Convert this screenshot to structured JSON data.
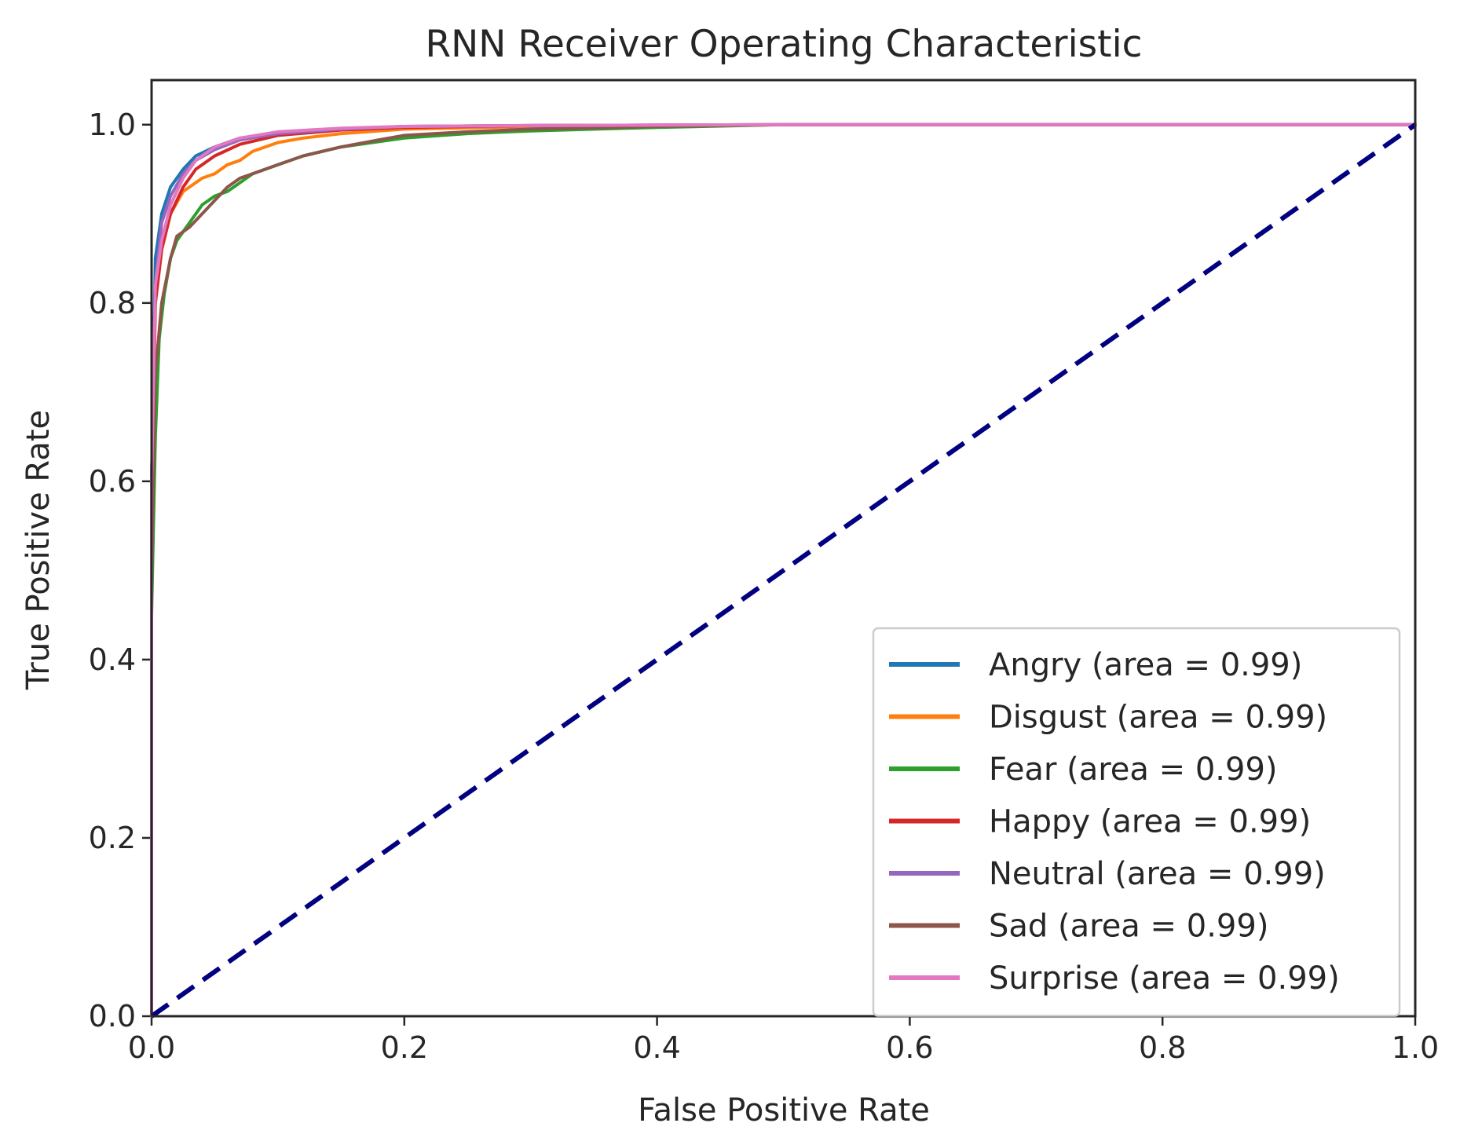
{
  "chart_data": {
    "type": "line",
    "title": "RNN Receiver Operating Characteristic",
    "xlabel": "False Positive Rate",
    "ylabel": "True Positive Rate",
    "xlim": [
      0.0,
      1.0
    ],
    "ylim": [
      0.0,
      1.05
    ],
    "x_ticks": [
      "0.0",
      "0.2",
      "0.4",
      "0.6",
      "0.8",
      "1.0"
    ],
    "y_ticks": [
      "0.0",
      "0.2",
      "0.4",
      "0.6",
      "0.8",
      "1.0"
    ],
    "grid": false,
    "legend_position": "lower-right",
    "diagonal": {
      "color": "#000080",
      "style": "dashed",
      "x": [
        0.0,
        1.0
      ],
      "y": [
        0.0,
        1.0
      ]
    },
    "series": [
      {
        "name": "Angry",
        "label": "Angry (area = 0.99)",
        "auc": 0.99,
        "color": "#1f77b4",
        "x": [
          0.0,
          0.0,
          0.003,
          0.008,
          0.015,
          0.025,
          0.035,
          0.05,
          0.07,
          0.1,
          0.15,
          0.2,
          0.3,
          0.5,
          0.7,
          1.0
        ],
        "y": [
          0.0,
          0.6,
          0.85,
          0.9,
          0.93,
          0.95,
          0.965,
          0.975,
          0.985,
          0.99,
          0.995,
          0.998,
          0.999,
          1.0,
          1.0,
          1.0
        ]
      },
      {
        "name": "Disgust",
        "label": "Disgust (area = 0.99)",
        "auc": 0.99,
        "color": "#ff7f0e",
        "x": [
          0.0,
          0.0,
          0.003,
          0.008,
          0.015,
          0.025,
          0.04,
          0.05,
          0.06,
          0.07,
          0.08,
          0.1,
          0.12,
          0.15,
          0.2,
          0.3,
          0.5,
          0.7,
          1.0
        ],
        "y": [
          0.0,
          0.55,
          0.8,
          0.86,
          0.9,
          0.925,
          0.94,
          0.945,
          0.955,
          0.96,
          0.97,
          0.98,
          0.985,
          0.99,
          0.995,
          0.998,
          1.0,
          1.0,
          1.0
        ]
      },
      {
        "name": "Fear",
        "label": "Fear (area = 0.99)",
        "auc": 0.99,
        "color": "#2ca02c",
        "x": [
          0.0,
          0.0,
          0.003,
          0.006,
          0.01,
          0.015,
          0.02,
          0.03,
          0.04,
          0.05,
          0.06,
          0.07,
          0.08,
          0.1,
          0.12,
          0.15,
          0.2,
          0.25,
          0.3,
          0.4,
          0.5,
          0.7,
          1.0
        ],
        "y": [
          0.0,
          0.45,
          0.65,
          0.76,
          0.81,
          0.85,
          0.87,
          0.89,
          0.91,
          0.92,
          0.925,
          0.935,
          0.945,
          0.955,
          0.965,
          0.975,
          0.985,
          0.99,
          0.993,
          0.997,
          1.0,
          1.0,
          1.0
        ]
      },
      {
        "name": "Happy",
        "label": "Happy (area = 0.99)",
        "auc": 0.99,
        "color": "#d62728",
        "x": [
          0.0,
          0.0,
          0.003,
          0.008,
          0.015,
          0.025,
          0.035,
          0.05,
          0.07,
          0.1,
          0.15,
          0.2,
          0.3,
          0.5,
          0.7,
          1.0
        ],
        "y": [
          0.0,
          0.6,
          0.8,
          0.86,
          0.9,
          0.93,
          0.95,
          0.965,
          0.978,
          0.988,
          0.994,
          0.997,
          0.999,
          1.0,
          1.0,
          1.0
        ]
      },
      {
        "name": "Neutral",
        "label": "Neutral (area = 0.99)",
        "auc": 0.99,
        "color": "#9467bd",
        "x": [
          0.0,
          0.0,
          0.003,
          0.008,
          0.015,
          0.025,
          0.035,
          0.05,
          0.07,
          0.1,
          0.15,
          0.2,
          0.3,
          0.5,
          0.7,
          1.0
        ],
        "y": [
          0.0,
          0.6,
          0.82,
          0.89,
          0.92,
          0.945,
          0.96,
          0.972,
          0.983,
          0.99,
          0.995,
          0.998,
          0.999,
          1.0,
          1.0,
          1.0
        ]
      },
      {
        "name": "Sad",
        "label": "Sad (area = 0.99)",
        "auc": 0.99,
        "color": "#8c564b",
        "x": [
          0.0,
          0.0,
          0.003,
          0.008,
          0.015,
          0.02,
          0.03,
          0.04,
          0.05,
          0.06,
          0.07,
          0.08,
          0.1,
          0.12,
          0.15,
          0.18,
          0.2,
          0.25,
          0.3,
          0.4,
          0.5,
          0.7,
          1.0
        ],
        "y": [
          0.0,
          0.5,
          0.72,
          0.8,
          0.85,
          0.875,
          0.885,
          0.9,
          0.915,
          0.93,
          0.94,
          0.945,
          0.955,
          0.965,
          0.975,
          0.983,
          0.988,
          0.992,
          0.995,
          0.998,
          1.0,
          1.0,
          1.0
        ]
      },
      {
        "name": "Surprise",
        "label": "Surprise (area = 0.99)",
        "auc": 0.99,
        "color": "#e377c2",
        "x": [
          0.0,
          0.0,
          0.003,
          0.008,
          0.015,
          0.025,
          0.035,
          0.05,
          0.07,
          0.1,
          0.15,
          0.2,
          0.3,
          0.5,
          0.7,
          1.0
        ],
        "y": [
          0.0,
          0.6,
          0.82,
          0.87,
          0.91,
          0.94,
          0.96,
          0.975,
          0.985,
          0.992,
          0.996,
          0.998,
          0.999,
          1.0,
          1.0,
          1.0
        ]
      }
    ]
  }
}
